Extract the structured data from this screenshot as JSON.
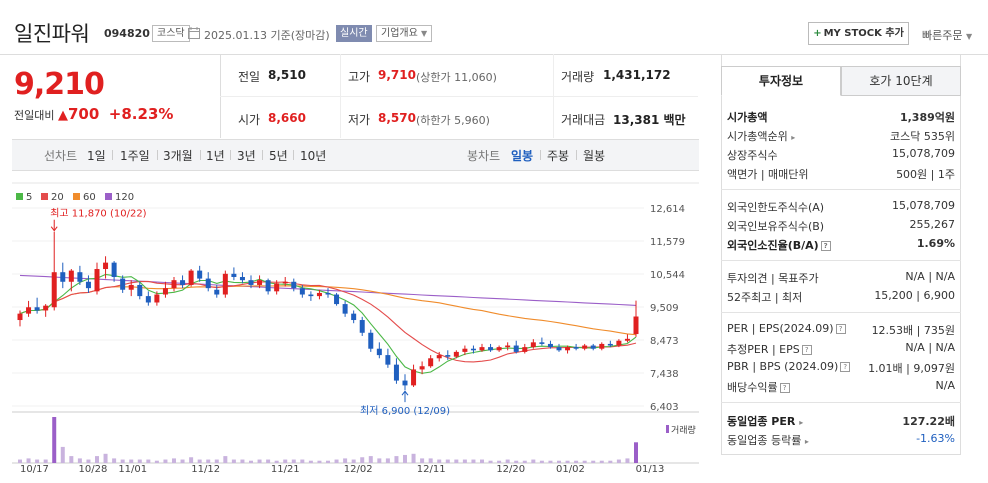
{
  "header": {
    "title": "일진파워",
    "code": "094820",
    "market_badge": "코스닥",
    "date_text": "2025.01.13 기준(장마감)",
    "realtime_badge": "실시간",
    "company_button": "기업개요",
    "mystock_button": "MY STOCK 추가",
    "quick_order": "빠른주문"
  },
  "price": {
    "current": "9,210",
    "change_label": "전일대비",
    "change_amount": "700",
    "change_rate": "+8.23%"
  },
  "stats": {
    "prev_close_label": "전일",
    "prev_close": "8,510",
    "open_label": "시가",
    "open": "8,660",
    "high_label": "고가",
    "high": "9,710",
    "upper_limit": "(상한가 11,060)",
    "low_label": "저가",
    "low": "8,570",
    "lower_limit": "(하한가 5,960)",
    "volume_label": "거래량",
    "volume": "1,431,172",
    "amount_label": "거래대금",
    "amount": "13,381",
    "amount_unit": "백만"
  },
  "toolbar": {
    "line_label": "선차트",
    "line_periods": [
      "1일",
      "1주일",
      "3개월",
      "1년",
      "3년",
      "5년",
      "10년"
    ],
    "candle_label": "봉차트",
    "candle_periods": [
      "일봉",
      "주봉",
      "월봉"
    ],
    "selected_candle": "일봉"
  },
  "chart_data": {
    "type": "candlestick",
    "legend": [
      {
        "name": "5",
        "color": "#4cb847"
      },
      {
        "name": "20",
        "color": "#e44c4c"
      },
      {
        "name": "60",
        "color": "#f08c2c"
      },
      {
        "name": "120",
        "color": "#9b5fc8"
      }
    ],
    "y_ticks": [
      "12,614",
      "11,579",
      "10,544",
      "9,509",
      "8,473",
      "7,438",
      "6,403"
    ],
    "y_range": [
      6403,
      12614
    ],
    "x_ticks": [
      "10/17",
      "10/28",
      "11/01",
      "11/12",
      "11/21",
      "12/02",
      "12/11",
      "12/20",
      "01/02",
      "01/13"
    ],
    "annotations": {
      "high": "최고 11,870 (10/22)",
      "low": "최저 6,900 (12/09)"
    },
    "volume_label": "거래량",
    "candles": [
      [
        9100,
        9400,
        8900,
        9300
      ],
      [
        9300,
        9700,
        9200,
        9500
      ],
      [
        9500,
        9800,
        9300,
        9400
      ],
      [
        9400,
        9600,
        9200,
        9550
      ],
      [
        9500,
        11870,
        9400,
        10600
      ],
      [
        10600,
        10900,
        10100,
        10300
      ],
      [
        10300,
        10700,
        10000,
        10650
      ],
      [
        10600,
        10800,
        10200,
        10300
      ],
      [
        10300,
        10500,
        9950,
        10100
      ],
      [
        10000,
        10900,
        9900,
        10700
      ],
      [
        10700,
        11100,
        10400,
        10900
      ],
      [
        10900,
        10950,
        10300,
        10450
      ],
      [
        10400,
        10500,
        9950,
        10050
      ],
      [
        10050,
        10350,
        9850,
        10200
      ],
      [
        10200,
        10300,
        9750,
        9850
      ],
      [
        9850,
        10000,
        9550,
        9650
      ],
      [
        9650,
        10000,
        9550,
        9900
      ],
      [
        9900,
        10300,
        9800,
        10100
      ],
      [
        10100,
        10450,
        10000,
        10350
      ],
      [
        10350,
        10500,
        10100,
        10200
      ],
      [
        10200,
        10700,
        10150,
        10650
      ],
      [
        10650,
        10800,
        10300,
        10400
      ],
      [
        10400,
        10600,
        10000,
        10100
      ],
      [
        10050,
        10200,
        9800,
        9900
      ],
      [
        9900,
        10650,
        9800,
        10550
      ],
      [
        10550,
        10750,
        10350,
        10450
      ],
      [
        10450,
        10600,
        10250,
        10350
      ],
      [
        10350,
        10500,
        10100,
        10200
      ],
      [
        10200,
        10500,
        10100,
        10350
      ],
      [
        10350,
        10400,
        9900,
        10000
      ],
      [
        10000,
        10350,
        9900,
        10250
      ],
      [
        10250,
        10450,
        10150,
        10300
      ],
      [
        10300,
        10400,
        10000,
        10100
      ],
      [
        10100,
        10200,
        9800,
        9900
      ],
      [
        9900,
        10000,
        9700,
        9850
      ],
      [
        9850,
        10050,
        9750,
        9950
      ],
      [
        9950,
        10100,
        9800,
        9900
      ],
      [
        9900,
        9950,
        9550,
        9600
      ],
      [
        9600,
        9700,
        9200,
        9300
      ],
      [
        9300,
        9400,
        9000,
        9100
      ],
      [
        9100,
        9200,
        8600,
        8700
      ],
      [
        8700,
        8800,
        8100,
        8200
      ],
      [
        8200,
        8400,
        7900,
        8000
      ],
      [
        8000,
        8200,
        7600,
        7700
      ],
      [
        7700,
        7900,
        7100,
        7200
      ],
      [
        7200,
        7400,
        6900,
        7050
      ],
      [
        7050,
        7700,
        7000,
        7550
      ],
      [
        7550,
        7800,
        7400,
        7650
      ],
      [
        7650,
        8000,
        7600,
        7900
      ],
      [
        7900,
        8100,
        7800,
        8000
      ],
      [
        8000,
        8150,
        7850,
        7950
      ],
      [
        7950,
        8150,
        7900,
        8100
      ],
      [
        8100,
        8300,
        8000,
        8200
      ],
      [
        8200,
        8300,
        8050,
        8150
      ],
      [
        8150,
        8350,
        8100,
        8250
      ],
      [
        8250,
        8350,
        8100,
        8150
      ],
      [
        8150,
        8300,
        8100,
        8250
      ],
      [
        8250,
        8400,
        8150,
        8300
      ],
      [
        8300,
        8450,
        8050,
        8100
      ],
      [
        8100,
        8350,
        8050,
        8250
      ],
      [
        8250,
        8500,
        8200,
        8400
      ],
      [
        8400,
        8550,
        8300,
        8350
      ],
      [
        8350,
        8450,
        8200,
        8250
      ],
      [
        8250,
        8350,
        8100,
        8150
      ],
      [
        8150,
        8300,
        8050,
        8250
      ],
      [
        8250,
        8350,
        8150,
        8200
      ],
      [
        8200,
        8350,
        8150,
        8300
      ],
      [
        8300,
        8350,
        8150,
        8200
      ],
      [
        8200,
        8400,
        8150,
        8350
      ],
      [
        8350,
        8450,
        8250,
        8300
      ],
      [
        8300,
        8500,
        8250,
        8450
      ],
      [
        8450,
        8650,
        8400,
        8510
      ],
      [
        8660,
        9710,
        8570,
        9210
      ]
    ],
    "volumes": [
      3,
      4,
      3,
      3,
      40,
      14,
      6,
      4,
      3,
      6,
      8,
      4,
      3,
      3,
      3,
      3,
      2,
      3,
      4,
      3,
      5,
      3,
      3,
      3,
      6,
      3,
      3,
      2,
      3,
      3,
      2,
      3,
      3,
      3,
      2,
      2,
      2,
      3,
      4,
      3,
      5,
      6,
      4,
      4,
      6,
      7,
      8,
      4,
      4,
      3,
      3,
      3,
      3,
      3,
      3,
      2,
      2,
      3,
      2,
      2,
      3,
      2,
      2,
      2,
      2,
      2,
      2,
      2,
      2,
      2,
      3,
      4,
      18
    ]
  },
  "invest": {
    "tab_active": "투자정보",
    "tab_other": "호가 10단계",
    "market_cap_label": "시가총액",
    "market_cap": "1,389억원",
    "cap_rank_label": "시가총액순위",
    "cap_rank": "코스닥 535위",
    "shares_label": "상장주식수",
    "shares": "15,078,709",
    "facevalue_label": "액면가 | 매매단위",
    "facevalue": "500원 | 1주",
    "foreign_limit_label": "외국인한도주식수(A)",
    "foreign_limit": "15,078,709",
    "foreign_hold_label": "외국인보유주식수(B)",
    "foreign_hold": "255,267",
    "foreign_ratio_label": "외국인소진율(B/A)",
    "foreign_ratio": "1.69%",
    "opinion_label": "투자의견 | 목표주가",
    "opinion": "N/A | N/A",
    "range52_label": "52주최고 | 최저",
    "range52": "15,200 | 6,900",
    "per_label": "PER | EPS(2024.09)",
    "per": "12.53배 | 735원",
    "est_per_label": "추정PER | EPS",
    "est_per": "N/A | N/A",
    "pbr_label": "PBR | BPS (2024.09)",
    "pbr": "1.01배 | 9,097원",
    "dividend_label": "배당수익률",
    "dividend": "N/A",
    "industry_per_label": "동일업종 PER",
    "industry_per": "127.22배",
    "industry_rate_label": "동일업종 등락률",
    "industry_rate": "-1.63%"
  }
}
